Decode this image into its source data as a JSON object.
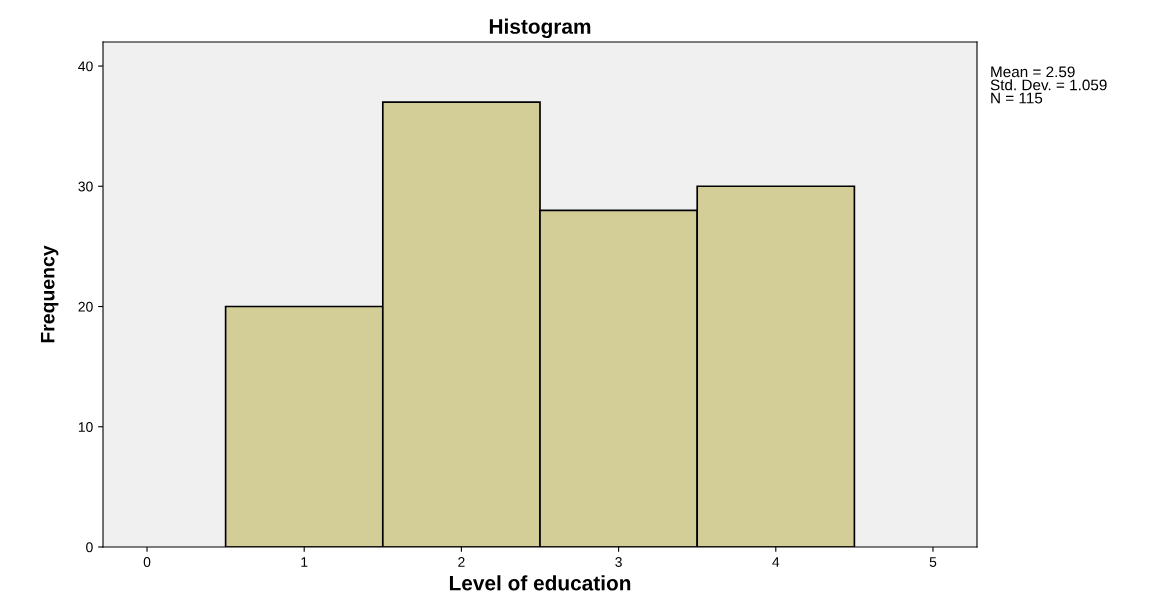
{
  "chart_data": {
    "type": "histogram",
    "title": "Histogram",
    "xlabel": "Level of education",
    "ylabel": "Frequency",
    "bins": [
      0.5,
      1.5,
      2.5,
      3.5,
      4.5
    ],
    "values": [
      20,
      37,
      28,
      30
    ],
    "color": "#d3ce97",
    "xlim": [
      -0.28,
      5.28
    ],
    "xticks": [
      0,
      1,
      2,
      3,
      4,
      5
    ],
    "ylim": [
      0,
      42
    ],
    "yticks": [
      0,
      10,
      20,
      30,
      40
    ],
    "grid": false,
    "annotations": [
      "Mean = 2.59\nStd. Dev. = 1.059\nN = 115"
    ]
  }
}
